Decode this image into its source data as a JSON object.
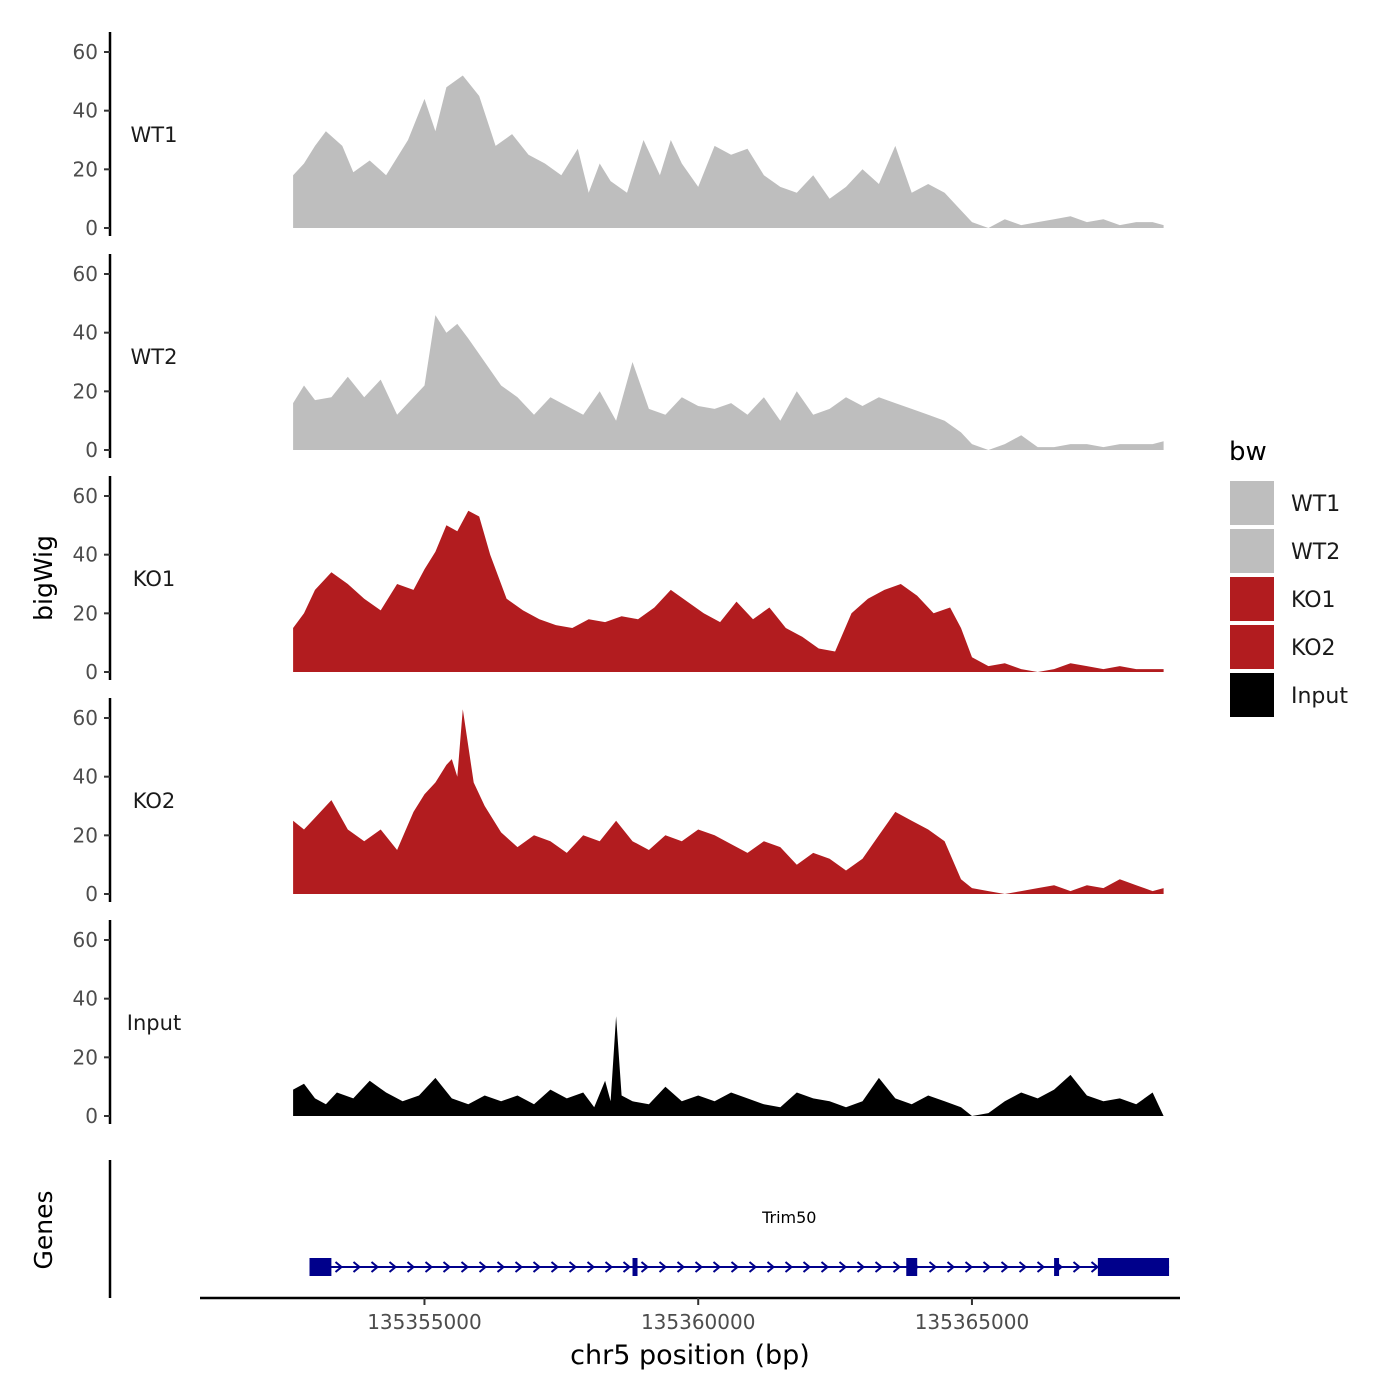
{
  "chart_data": {
    "type": "area",
    "ylabel": "bigWig",
    "xlabel": "chr5 position (bp)",
    "xlim": [
      135350900,
      135368800
    ],
    "ylim": [
      0,
      65
    ],
    "y_ticks": [
      0,
      20,
      40,
      60
    ],
    "x_ticks": [
      135355000,
      135360000,
      135365000
    ],
    "legend": {
      "title": "bw",
      "position": "right",
      "entries": [
        {
          "label": "WT1",
          "color": "#bebebe"
        },
        {
          "label": "WT2",
          "color": "#bebebe"
        },
        {
          "label": "KO1",
          "color": "#b21c1f"
        },
        {
          "label": "KO2",
          "color": "#b21c1f"
        },
        {
          "label": "Input",
          "color": "#000000"
        }
      ]
    },
    "series": [
      {
        "name": "WT1",
        "color": "#bebebe",
        "x": [
          135352600,
          135352800,
          135353000,
          135353200,
          135353500,
          135353700,
          135354000,
          135354300,
          135354700,
          135355000,
          135355200,
          135355400,
          135355700,
          135356000,
          135356300,
          135356600,
          135356900,
          135357200,
          135357500,
          135357800,
          135358000,
          135358200,
          135358400,
          135358700,
          135359000,
          135359300,
          135359500,
          135359700,
          135360000,
          135360300,
          135360600,
          135360900,
          135361200,
          135361500,
          135361800,
          135362100,
          135362400,
          135362700,
          135363000,
          135363300,
          135363600,
          135363900,
          135364200,
          135364500,
          135364800,
          135365000,
          135365300,
          135365600,
          135365900,
          135366200,
          135366500,
          135366800,
          135367100,
          135367400,
          135367700,
          135368000,
          135368300,
          135368500
        ],
        "values": [
          18,
          22,
          28,
          33,
          28,
          19,
          23,
          18,
          30,
          44,
          33,
          48,
          52,
          45,
          28,
          32,
          25,
          22,
          18,
          27,
          12,
          22,
          16,
          12,
          30,
          18,
          30,
          22,
          14,
          28,
          25,
          27,
          18,
          14,
          12,
          18,
          10,
          14,
          20,
          15,
          28,
          12,
          15,
          12,
          6,
          2,
          0,
          3,
          1,
          2,
          3,
          4,
          2,
          3,
          1,
          2,
          2,
          1
        ]
      },
      {
        "name": "WT2",
        "color": "#bebebe",
        "x": [
          135352600,
          135352800,
          135353000,
          135353300,
          135353600,
          135353900,
          135354200,
          135354500,
          135354800,
          135355000,
          135355200,
          135355400,
          135355600,
          135355800,
          135356100,
          135356400,
          135356700,
          135357000,
          135357300,
          135357600,
          135357900,
          135358200,
          135358500,
          135358800,
          135359100,
          135359400,
          135359700,
          135360000,
          135360300,
          135360600,
          135360900,
          135361200,
          135361500,
          135361800,
          135362100,
          135362400,
          135362700,
          135363000,
          135363300,
          135363600,
          135363900,
          135364200,
          135364500,
          135364800,
          135365000,
          135365300,
          135365600,
          135365900,
          135366200,
          135366500,
          135366800,
          135367100,
          135367400,
          135367700,
          135368000,
          135368300,
          135368500
        ],
        "values": [
          16,
          22,
          17,
          18,
          25,
          18,
          24,
          12,
          18,
          22,
          46,
          40,
          43,
          38,
          30,
          22,
          18,
          12,
          18,
          15,
          12,
          20,
          10,
          30,
          14,
          12,
          18,
          15,
          14,
          16,
          12,
          18,
          10,
          20,
          12,
          14,
          18,
          15,
          18,
          16,
          14,
          12,
          10,
          6,
          2,
          0,
          2,
          5,
          1,
          1,
          2,
          2,
          1,
          2,
          2,
          2,
          3
        ]
      },
      {
        "name": "KO1",
        "color": "#b21c1f",
        "x": [
          135352600,
          135352800,
          135353000,
          135353300,
          135353600,
          135353900,
          135354200,
          135354500,
          135354800,
          135355000,
          135355200,
          135355400,
          135355600,
          135355800,
          135356000,
          135356200,
          135356500,
          135356800,
          135357100,
          135357400,
          135357700,
          135358000,
          135358300,
          135358600,
          135358900,
          135359200,
          135359500,
          135359800,
          135360100,
          135360400,
          135360700,
          135361000,
          135361300,
          135361600,
          135361900,
          135362200,
          135362500,
          135362800,
          135363100,
          135363400,
          135363700,
          135364000,
          135364300,
          135364600,
          135364800,
          135365000,
          135365300,
          135365600,
          135365900,
          135366200,
          135366500,
          135366800,
          135367100,
          135367400,
          135367700,
          135368000,
          135368300,
          135368500
        ],
        "values": [
          15,
          20,
          28,
          34,
          30,
          25,
          21,
          30,
          28,
          35,
          41,
          50,
          48,
          55,
          53,
          40,
          25,
          21,
          18,
          16,
          15,
          18,
          17,
          19,
          18,
          22,
          28,
          24,
          20,
          17,
          24,
          18,
          22,
          15,
          12,
          8,
          7,
          20,
          25,
          28,
          30,
          26,
          20,
          22,
          15,
          5,
          2,
          3,
          1,
          0,
          1,
          3,
          2,
          1,
          2,
          1,
          1,
          1
        ]
      },
      {
        "name": "KO2",
        "color": "#b21c1f",
        "x": [
          135352600,
          135352800,
          135353000,
          135353300,
          135353600,
          135353900,
          135354200,
          135354500,
          135354800,
          135355000,
          135355200,
          135355400,
          135355500,
          135355600,
          135355700,
          135355900,
          135356100,
          135356400,
          135356700,
          135357000,
          135357300,
          135357600,
          135357900,
          135358200,
          135358500,
          135358800,
          135359100,
          135359400,
          135359700,
          135360000,
          135360300,
          135360600,
          135360900,
          135361200,
          135361500,
          135361800,
          135362100,
          135362400,
          135362700,
          135363000,
          135363300,
          135363600,
          135363900,
          135364200,
          135364500,
          135364800,
          135365000,
          135365300,
          135365600,
          135365900,
          135366200,
          135366500,
          135366800,
          135367100,
          135367400,
          135367700,
          135368000,
          135368300,
          135368500
        ],
        "values": [
          25,
          22,
          26,
          32,
          22,
          18,
          22,
          15,
          28,
          34,
          38,
          44,
          46,
          40,
          63,
          38,
          30,
          21,
          16,
          20,
          18,
          14,
          20,
          18,
          25,
          18,
          15,
          20,
          18,
          22,
          20,
          17,
          14,
          18,
          16,
          10,
          14,
          12,
          8,
          12,
          20,
          28,
          25,
          22,
          18,
          5,
          2,
          1,
          0,
          1,
          2,
          3,
          1,
          3,
          2,
          5,
          3,
          1,
          2
        ]
      },
      {
        "name": "Input",
        "color": "#000000",
        "x": [
          135352600,
          135352800,
          135353000,
          135353200,
          135353400,
          135353700,
          135354000,
          135354300,
          135354600,
          135354900,
          135355200,
          135355500,
          135355800,
          135356100,
          135356400,
          135356700,
          135357000,
          135357300,
          135357600,
          135357900,
          135358100,
          135358300,
          135358400,
          135358500,
          135358600,
          135358800,
          135359100,
          135359400,
          135359700,
          135360000,
          135360300,
          135360600,
          135360900,
          135361200,
          135361500,
          135361800,
          135362100,
          135362400,
          135362700,
          135363000,
          135363300,
          135363600,
          135363900,
          135364200,
          135364500,
          135364800,
          135365000,
          135365300,
          135365600,
          135365900,
          135366200,
          135366500,
          135366800,
          135367100,
          135367400,
          135367700,
          135368000,
          135368300,
          135368500
        ],
        "values": [
          9,
          11,
          6,
          4,
          8,
          6,
          12,
          8,
          5,
          7,
          13,
          6,
          4,
          7,
          5,
          7,
          4,
          9,
          6,
          8,
          3,
          12,
          5,
          34,
          7,
          5,
          4,
          10,
          5,
          7,
          5,
          8,
          6,
          4,
          3,
          8,
          6,
          5,
          3,
          5,
          13,
          6,
          4,
          7,
          5,
          3,
          0,
          1,
          5,
          8,
          6,
          9,
          14,
          7,
          5,
          6,
          4,
          8,
          0
        ]
      }
    ],
    "genes": [
      {
        "name": "Trim50",
        "strand": "+",
        "start": 135352900,
        "end": 135368600,
        "exons": [
          [
            135352900,
            135353300
          ],
          [
            135358800,
            135358880
          ],
          [
            135363800,
            135364000
          ],
          [
            135366500,
            135366580
          ],
          [
            135367300,
            135368600
          ]
        ]
      }
    ],
    "gene_track_label": "Genes"
  }
}
